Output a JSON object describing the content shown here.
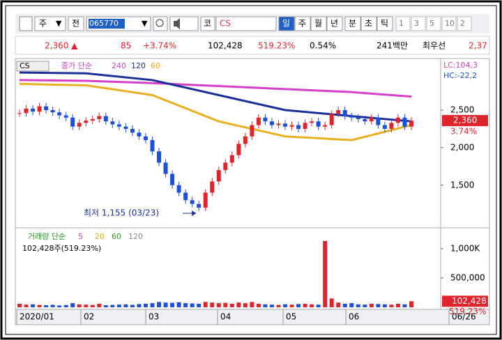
{
  "toolbar": {
    "market": "주",
    "prev": "전",
    "code": "065770",
    "kosdaq": "코",
    "name": "CS",
    "periods": [
      "일",
      "주",
      "월",
      "년",
      "분",
      "초",
      "틱"
    ],
    "intervals": [
      "1",
      "3",
      "5",
      "10",
      "2"
    ]
  },
  "quote": {
    "price": "2,360 ▲",
    "change": "85",
    "rate": "+3.74%",
    "volume": "102,428",
    "volume_rate": "519.23%",
    "turnover": "0.54%",
    "amount": "241백만",
    "best": "최우선",
    "best_price": "2,37"
  },
  "chart": {
    "legend_code": "CS",
    "ma_label": "종가 단순",
    "lc": "LC:104,3",
    "hc": "HC:-22,2",
    "price": {
      "ylim": [
        950,
        3150
      ],
      "yticks": [
        {
          "value": 2500,
          "label": "2,500"
        },
        {
          "value": 2000,
          "label": "2,000"
        },
        {
          "value": 1500,
          "label": "1,500"
        }
      ],
      "up_color": "#e0242b",
      "down_color": "#1d4fd8",
      "closes": [
        2460,
        2520,
        2480,
        2550,
        2500,
        2470,
        2430,
        2400,
        2280,
        2330,
        2360,
        2380,
        2420,
        2350,
        2310,
        2280,
        2250,
        2200,
        2150,
        2100,
        1950,
        1800,
        1650,
        1500,
        1400,
        1300,
        1250,
        1200,
        1400,
        1550,
        1700,
        1800,
        1900,
        2050,
        2150,
        2300,
        2400,
        2350,
        2300,
        2320,
        2280,
        2300,
        2250,
        2330,
        2350,
        2280,
        2300,
        2450,
        2500,
        2420,
        2400,
        2380,
        2350,
        2400,
        2300,
        2250,
        2330,
        2400,
        2280,
        2360
      ],
      "ma_x": [
        0,
        10,
        20,
        30,
        40,
        50,
        59
      ],
      "ma": [
        {
          "name": "240",
          "color": "#d63fc8",
          "values": [
            2900,
            2890,
            2860,
            2820,
            2780,
            2740,
            2680
          ]
        },
        {
          "name": "120",
          "color": "#1a2f9a",
          "values": [
            3000,
            2990,
            2900,
            2700,
            2500,
            2420,
            2350
          ]
        },
        {
          "name": "60",
          "color": "#e8b020",
          "values": [
            2850,
            2830,
            2700,
            2350,
            2150,
            2100,
            2300
          ]
        }
      ],
      "price_tag": "2,360",
      "rate_tag": "3.74%",
      "low_note": "최저 1,155 (03/23)"
    },
    "volume": {
      "ylim": [
        0,
        1320000
      ],
      "yticks": [
        {
          "value": 1000000,
          "label": "1,000K"
        },
        {
          "value": 500000,
          "label": "500,000"
        }
      ],
      "label": "거래량 단순",
      "ma_names": [
        {
          "name": "5",
          "color": "#d63fc8"
        },
        {
          "name": "20",
          "color": "#e8b020"
        },
        {
          "name": "60",
          "color": "#2a9a2a"
        },
        {
          "name": "120",
          "color": "#888888"
        }
      ],
      "info": "102,428주(519.23%)",
      "values": [
        60000,
        45000,
        50000,
        40000,
        35000,
        42000,
        30000,
        38000,
        70000,
        50000,
        45000,
        40000,
        60000,
        35000,
        40000,
        45000,
        50000,
        42000,
        55000,
        60000,
        70000,
        90000,
        80000,
        75000,
        85000,
        70000,
        65000,
        60000,
        90000,
        80000,
        70000,
        75000,
        60000,
        80000,
        70000,
        90000,
        60000,
        50000,
        45000,
        40000,
        50000,
        45000,
        55000,
        60000,
        50000,
        45000,
        1130000,
        150000,
        80000,
        60000,
        70000,
        50000,
        45000,
        60000,
        55000,
        50000,
        45000,
        60000,
        50000,
        102428
      ],
      "tag": "102,428",
      "rate_tag": "519.23%"
    },
    "x_labels": [
      "2020/01",
      "02",
      "03",
      "04",
      "05",
      "06",
      "06/26"
    ]
  }
}
